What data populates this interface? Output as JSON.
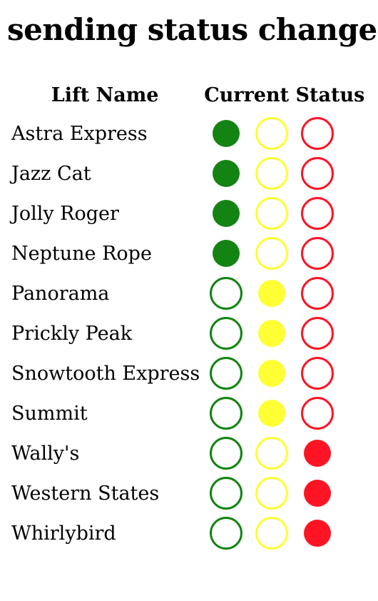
{
  "page": {
    "title": "sending status change"
  },
  "table": {
    "headers": [
      "Lift Name",
      "Current Status"
    ],
    "colors": {
      "green": "#138313",
      "yellow": "#ffff33",
      "red": "#ff1424"
    },
    "lifts": [
      {
        "name": "Astra Express",
        "status": "green"
      },
      {
        "name": "Jazz Cat",
        "status": "green"
      },
      {
        "name": "Jolly Roger",
        "status": "green"
      },
      {
        "name": "Neptune Rope",
        "status": "green"
      },
      {
        "name": "Panorama",
        "status": "yellow"
      },
      {
        "name": "Prickly Peak",
        "status": "yellow"
      },
      {
        "name": "Snowtooth Express",
        "status": "yellow"
      },
      {
        "name": "Summit",
        "status": "yellow"
      },
      {
        "name": "Wally's",
        "status": "red"
      },
      {
        "name": "Western States",
        "status": "red"
      },
      {
        "name": "Whirlybird",
        "status": "red"
      }
    ]
  }
}
